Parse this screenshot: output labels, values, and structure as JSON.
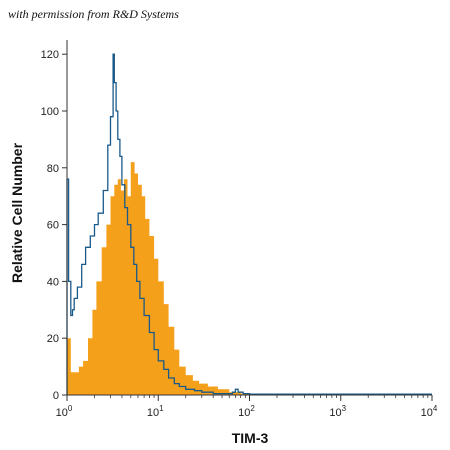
{
  "watermark": "with permission from R&D Systems",
  "chart_data": {
    "type": "area",
    "title": "",
    "xlabel": "TIM-3",
    "ylabel": "Relative Cell Number",
    "x_scale": "log",
    "xlim": [
      1,
      10000
    ],
    "ylim": [
      0,
      125
    ],
    "x_ticks": [
      {
        "value": 1,
        "base": "10",
        "exp": "0"
      },
      {
        "value": 10,
        "base": "10",
        "exp": "1"
      },
      {
        "value": 100,
        "base": "10",
        "exp": "2"
      },
      {
        "value": 1000,
        "base": "10",
        "exp": "3"
      },
      {
        "value": 10000,
        "base": "10",
        "exp": "4"
      }
    ],
    "y_ticks": [
      0,
      20,
      40,
      60,
      80,
      100,
      120
    ],
    "grid": false,
    "legend": "none",
    "series": [
      {
        "fill": "#f5a01a",
        "style": "filled",
        "x": [
          1.0,
          1.1,
          1.2,
          1.35,
          1.5,
          1.7,
          1.9,
          2.1,
          2.4,
          2.7,
          3.0,
          3.3,
          3.6,
          3.9,
          4.2,
          4.6,
          5.0,
          5.5,
          6.0,
          6.6,
          7.2,
          8.0,
          9.0,
          10.0,
          11.5,
          13.0,
          15.0,
          17.0,
          20.0,
          24.0,
          28.0,
          35.0,
          45.0,
          60.0,
          80.0,
          100.0
        ],
        "y": [
          20,
          8,
          8,
          10,
          12,
          20,
          30,
          40,
          52,
          60,
          70,
          74,
          76,
          72,
          76,
          70,
          82,
          78,
          74,
          70,
          62,
          56,
          48,
          40,
          32,
          24,
          16,
          10,
          7,
          5,
          4,
          3,
          2,
          1,
          0.5,
          0
        ]
      },
      {
        "color": "#1a5a8a",
        "style": "outline",
        "x": [
          1.0,
          1.04,
          1.1,
          1.15,
          1.2,
          1.3,
          1.45,
          1.6,
          1.8,
          2.0,
          2.2,
          2.5,
          2.8,
          3.0,
          3.2,
          3.3,
          3.45,
          3.6,
          3.8,
          4.0,
          4.3,
          4.6,
          5.0,
          5.4,
          5.8,
          6.3,
          7.0,
          8.0,
          9.0,
          10.0,
          11.5,
          13.0,
          15.0,
          17.0,
          20.0,
          25.0,
          30.0,
          40.0,
          55.0,
          65.0,
          70.0,
          75.0,
          85.0,
          100.0,
          1000.0,
          10000.0
        ],
        "y": [
          76,
          40,
          28,
          30,
          34,
          38,
          46,
          52,
          56,
          60,
          64,
          72,
          88,
          98,
          120,
          110,
          100,
          90,
          84,
          74,
          66,
          60,
          52,
          46,
          40,
          34,
          28,
          22,
          16,
          12,
          9,
          6,
          4,
          3,
          2,
          1.5,
          1,
          0.5,
          0.5,
          1,
          2,
          1,
          0.5,
          0.3,
          0.3,
          0.3
        ]
      }
    ]
  }
}
